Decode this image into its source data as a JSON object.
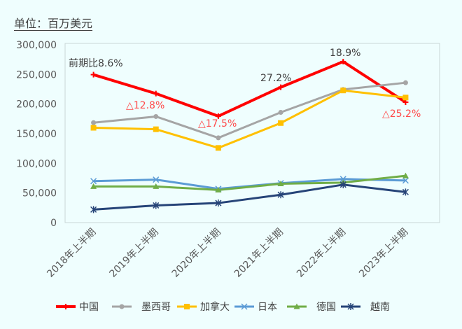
{
  "unit_label": "单位：百万美元",
  "chart_data": {
    "type": "line",
    "title": "",
    "xlabel": "",
    "ylabel": "",
    "categories": [
      "2018年上半期",
      "2019年上半期",
      "2020年上半期",
      "2021年上半期",
      "2022年上半期",
      "2023年上半期"
    ],
    "ylim": [
      0,
      300000
    ],
    "yticks": [
      0,
      50000,
      100000,
      150000,
      200000,
      250000,
      300000
    ],
    "ytick_labels": [
      "0",
      "50,000",
      "100,000",
      "150,000",
      "200,000",
      "250,000",
      "300,000"
    ],
    "grid": false,
    "legend_position": "bottom",
    "series": [
      {
        "name": "中国",
        "color": "#ff0000",
        "marker": "plus",
        "values": [
          249600,
          217700,
          179600,
          228400,
          271600,
          203200
        ]
      },
      {
        "name": "墨西哥",
        "color": "#a5a5a5",
        "marker": "circle",
        "values": [
          168600,
          179000,
          143000,
          186000,
          224500,
          236000
        ]
      },
      {
        "name": "加拿大",
        "color": "#ffc000",
        "marker": "square",
        "values": [
          160000,
          157500,
          126000,
          168000,
          223000,
          211000
        ]
      },
      {
        "name": "日本",
        "color": "#5b9bd5",
        "marker": "x",
        "values": [
          70000,
          72500,
          57000,
          66500,
          73500,
          71000
        ]
      },
      {
        "name": "德国",
        "color": "#70ad47",
        "marker": "triangle",
        "values": [
          61000,
          61000,
          55000,
          65500,
          67500,
          79000
        ]
      },
      {
        "name": "越南",
        "color": "#264478",
        "marker": "star",
        "values": [
          22000,
          29000,
          33000,
          47000,
          64000,
          51500
        ]
      }
    ],
    "annotations": [
      {
        "text": "前期比8.6%",
        "category": 0,
        "color": "#404040"
      },
      {
        "text": "△12.8%",
        "category": 1,
        "color": "#ff4b4b"
      },
      {
        "text": "△17.5%",
        "category": 2,
        "color": "#ff4b4b"
      },
      {
        "text": "27.2%",
        "category": 3,
        "color": "#404040"
      },
      {
        "text": "18.9%",
        "category": 4,
        "color": "#404040"
      },
      {
        "text": "△25.2%",
        "category": 5,
        "color": "#ff4b4b"
      }
    ]
  }
}
